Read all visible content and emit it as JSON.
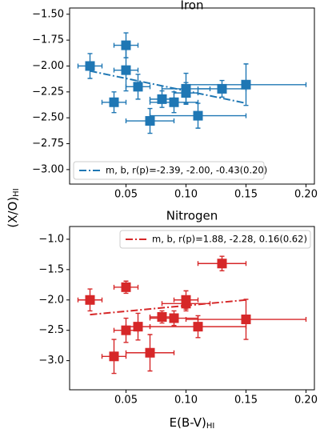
{
  "figure": {
    "ylabel": "(X/O)",
    "ylabel_sub": "HI",
    "xlabel": "E(B-V)",
    "xlabel_sub": "HI"
  },
  "chart_data": [
    {
      "type": "scatter",
      "title": "Iron",
      "legend": "lower left",
      "xlim": [
        0.003,
        0.207
      ],
      "ylim": [
        -3.14,
        -1.44
      ],
      "xticks": [
        {
          "value": 0.05,
          "label": "0.05"
        },
        {
          "value": 0.1,
          "label": "0.10"
        },
        {
          "value": 0.15,
          "label": "0.15"
        },
        {
          "value": 0.2,
          "label": "0.20"
        }
      ],
      "yticks": [
        {
          "value": -1.5,
          "label": "−1.50"
        },
        {
          "value": -1.75,
          "label": "−1.75"
        },
        {
          "value": -2.0,
          "label": "−2.00"
        },
        {
          "value": -2.25,
          "label": "−2.25"
        },
        {
          "value": -2.5,
          "label": "−2.50"
        },
        {
          "value": -2.75,
          "label": "−2.75"
        },
        {
          "value": -3.0,
          "label": "−3.00"
        }
      ],
      "series": [
        {
          "kind": "points",
          "color": "#1f77b4",
          "x": [
            0.02,
            0.05,
            0.05,
            0.06,
            0.04,
            0.07,
            0.08,
            0.09,
            0.1,
            0.1,
            0.11,
            0.13,
            0.15
          ],
          "values": [
            -2.0,
            -1.8,
            -2.04,
            -2.2,
            -2.35,
            -2.53,
            -2.32,
            -2.35,
            -2.22,
            -2.26,
            -2.48,
            -2.22,
            -2.18
          ],
          "xerr": [
            0.01,
            0.01,
            0.01,
            0.01,
            0.01,
            0.02,
            0.01,
            0.02,
            0.02,
            0.01,
            0.04,
            0.02,
            0.05
          ],
          "yerr": [
            0.12,
            0.12,
            0.2,
            0.12,
            0.1,
            0.12,
            0.08,
            0.1,
            0.15,
            0.1,
            0.12,
            0.08,
            0.2
          ]
        },
        {
          "kind": "fit",
          "name": "m, b, r(p)=-2.39, -2.00, -0.43(0.20)",
          "color": "#1f77b4",
          "x": [
            0.02,
            0.15
          ],
          "values": [
            -2.048,
            -2.359
          ]
        }
      ]
    },
    {
      "type": "scatter",
      "title": "Nitrogen",
      "legend": "upper right",
      "xlim": [
        0.003,
        0.207
      ],
      "ylim": [
        -3.48,
        -0.79
      ],
      "xticks": [
        {
          "value": 0.05,
          "label": "0.05"
        },
        {
          "value": 0.1,
          "label": "0.10"
        },
        {
          "value": 0.15,
          "label": "0.15"
        },
        {
          "value": 0.2,
          "label": "0.20"
        }
      ],
      "yticks": [
        {
          "value": -1.0,
          "label": "−1.0"
        },
        {
          "value": -1.5,
          "label": "−1.5"
        },
        {
          "value": -2.0,
          "label": "−2.0"
        },
        {
          "value": -2.5,
          "label": "−2.5"
        },
        {
          "value": -3.0,
          "label": "−3.0"
        }
      ],
      "series": [
        {
          "kind": "points",
          "color": "#d62728",
          "x": [
            0.02,
            0.05,
            0.05,
            0.06,
            0.04,
            0.07,
            0.08,
            0.09,
            0.1,
            0.1,
            0.11,
            0.13,
            0.15
          ],
          "values": [
            -2.0,
            -1.79,
            -2.5,
            -2.44,
            -2.93,
            -2.87,
            -2.28,
            -2.3,
            -2.06,
            -2.0,
            -2.44,
            -1.4,
            -2.32
          ],
          "xerr": [
            0.01,
            0.01,
            0.01,
            0.01,
            0.01,
            0.02,
            0.01,
            0.02,
            0.02,
            0.01,
            0.04,
            0.02,
            0.05
          ],
          "yerr": [
            0.18,
            0.1,
            0.2,
            0.22,
            0.28,
            0.3,
            0.1,
            0.12,
            0.12,
            0.15,
            0.18,
            0.12,
            0.33
          ]
        },
        {
          "kind": "fit",
          "name": "m, b, r(p)=1.88, -2.28, 0.16(0.62)",
          "color": "#d62728",
          "x": [
            0.02,
            0.15
          ],
          "values": [
            -2.242,
            -2.0
          ]
        }
      ]
    }
  ]
}
